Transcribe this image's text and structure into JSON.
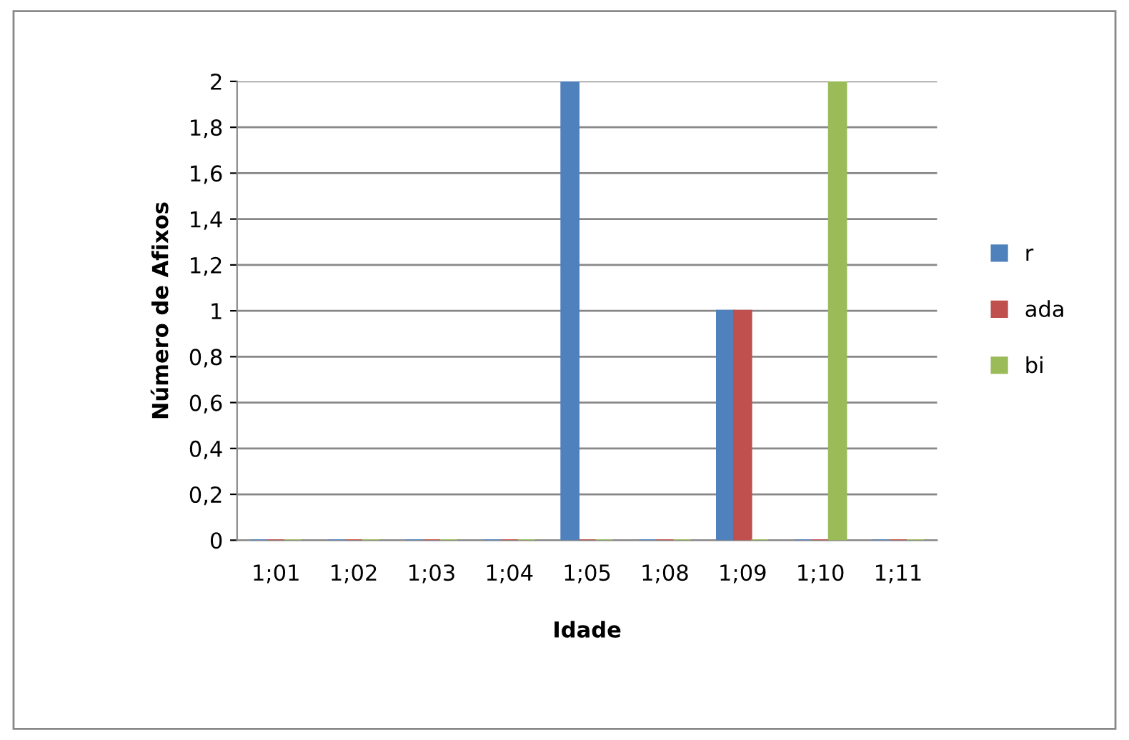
{
  "chart_data": {
    "type": "bar",
    "categories": [
      "1;01",
      "1;02",
      "1;03",
      "1;04",
      "1;05",
      "1;08",
      "1;09",
      "1;10",
      "1;11"
    ],
    "series": [
      {
        "name": "r",
        "color": "#4f81bd",
        "values": [
          0,
          0,
          0,
          0,
          2,
          0,
          1,
          0,
          0
        ]
      },
      {
        "name": "ada",
        "color": "#c0504d",
        "values": [
          0,
          0,
          0,
          0,
          0,
          0,
          1,
          0,
          0
        ]
      },
      {
        "name": "bi",
        "color": "#9bbb59",
        "values": [
          0,
          0,
          0,
          0,
          0,
          0,
          0,
          2,
          0
        ]
      }
    ],
    "xlabel": "Idade",
    "ylabel": "Número de Afixos",
    "ylim": [
      0,
      2
    ],
    "yticks": [
      0,
      {
        "value": 0.2,
        "label": "0,2"
      },
      {
        "value": 0.4,
        "label": "0,4"
      },
      {
        "value": 0.6,
        "label": "0,6"
      },
      {
        "value": 0.8,
        "label": "0,8"
      },
      1,
      {
        "value": 1.2,
        "label": "1,2"
      },
      {
        "value": 1.4,
        "label": "1,4"
      },
      {
        "value": 1.6,
        "label": "1,6"
      },
      {
        "value": 1.8,
        "label": "1,8"
      },
      2
    ],
    "grid": "y",
    "legend": "right"
  }
}
